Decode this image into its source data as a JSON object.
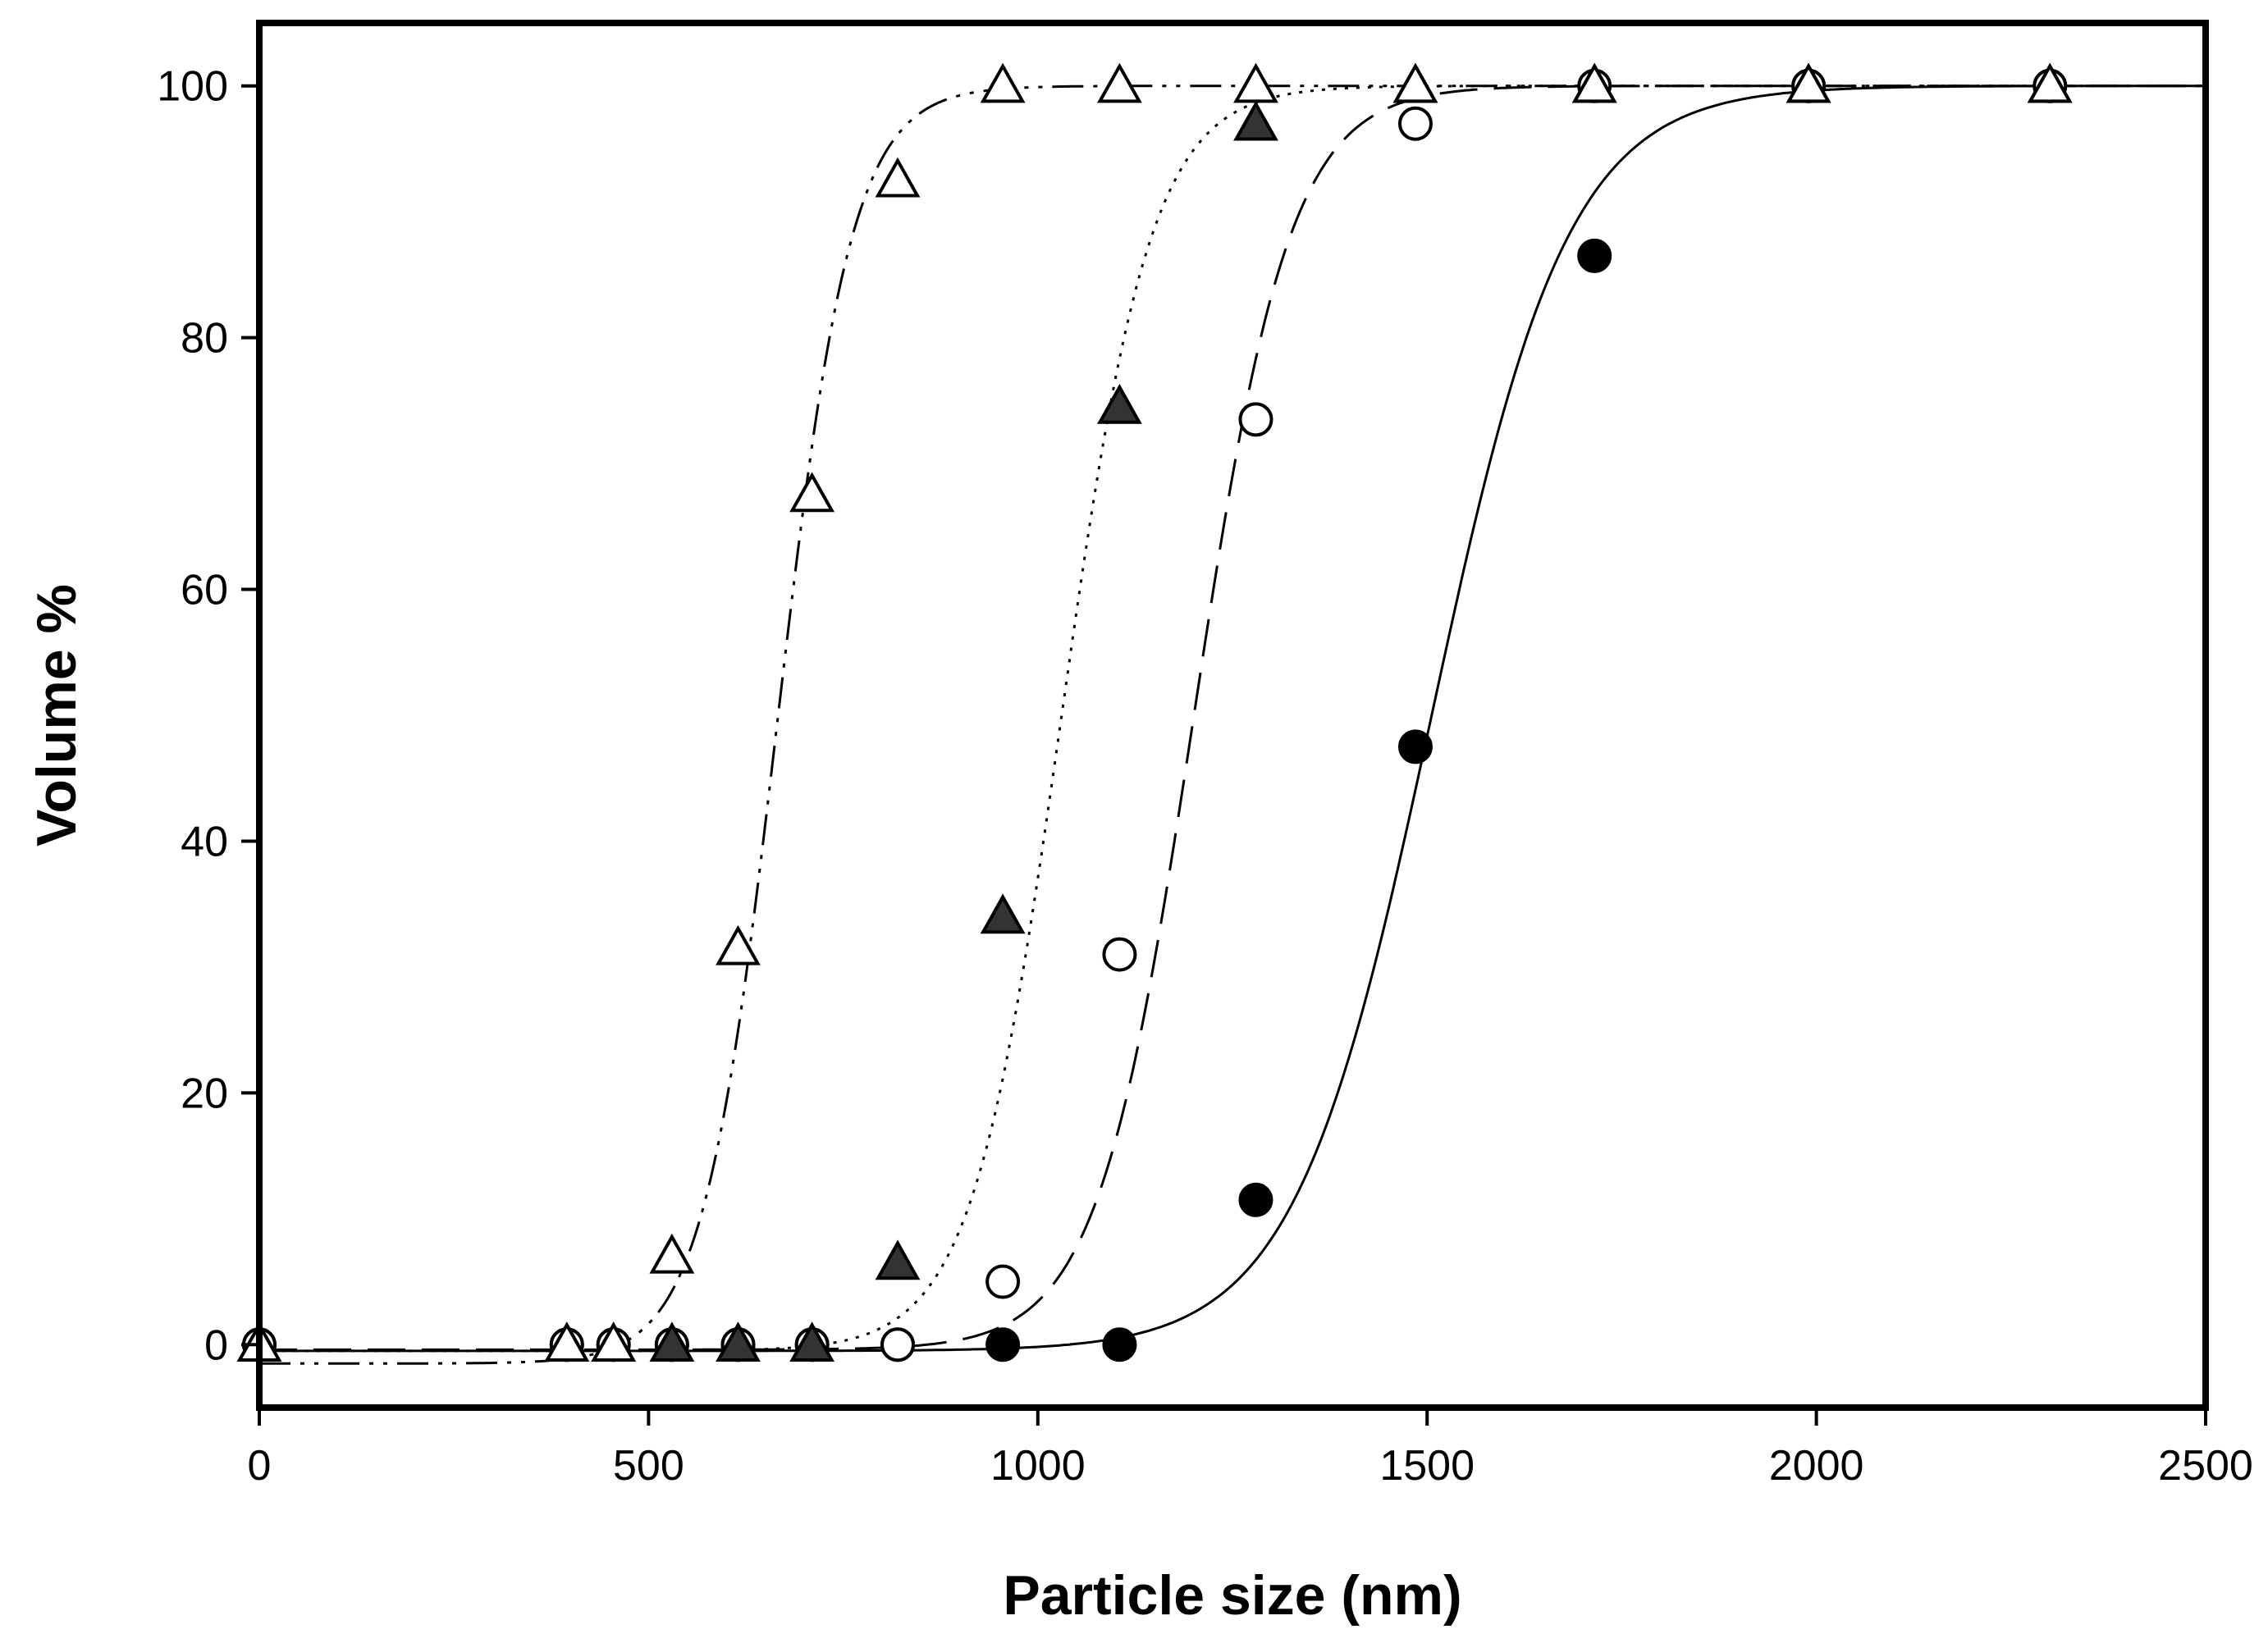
{
  "chart_data": {
    "type": "scatter",
    "title": "",
    "xlabel": "Particle size (nm)",
    "ylabel": "Volume %",
    "xlim": [
      0,
      2500
    ],
    "ylim": [
      -5,
      105
    ],
    "xticks": [
      0,
      500,
      1000,
      1500,
      2000,
      2500
    ],
    "yticks": [
      0,
      20,
      40,
      60,
      80,
      100
    ],
    "grid": false,
    "legend": "none",
    "series": [
      {
        "marker": "open-triangle",
        "line": "dash-dot-dot",
        "points": [
          [
            0,
            0
          ],
          [
            395,
            0
          ],
          [
            455,
            0
          ],
          [
            530,
            7
          ],
          [
            615,
            31.5
          ],
          [
            710,
            67.5
          ],
          [
            820,
            92.5
          ],
          [
            955,
            100
          ],
          [
            1105,
            100
          ],
          [
            1280,
            100
          ],
          [
            1485,
            100
          ],
          [
            1715,
            100
          ],
          [
            1990,
            100
          ],
          [
            2300,
            100
          ]
        ],
        "fit_midpoint": 665,
        "fit_width": 48,
        "fit_min": -1.5
      },
      {
        "marker": "filled-triangle",
        "line": "dotted",
        "points": [
          [
            0,
            0
          ],
          [
            395,
            0
          ],
          [
            455,
            0
          ],
          [
            530,
            0
          ],
          [
            615,
            0
          ],
          [
            710,
            0
          ],
          [
            820,
            6.5
          ],
          [
            955,
            34
          ],
          [
            1105,
            74.5
          ],
          [
            1280,
            97
          ],
          [
            1485,
            100
          ],
          [
            1715,
            100
          ],
          [
            1990,
            100
          ],
          [
            2300,
            100
          ]
        ],
        "fit_midpoint": 1030,
        "fit_width": 58,
        "fit_min": -0.5
      },
      {
        "marker": "open-circle",
        "line": "dashed",
        "points": [
          [
            0,
            0
          ],
          [
            395,
            0
          ],
          [
            455,
            0
          ],
          [
            530,
            0
          ],
          [
            615,
            0
          ],
          [
            710,
            0
          ],
          [
            820,
            0
          ],
          [
            955,
            5
          ],
          [
            1105,
            31
          ],
          [
            1280,
            73.5
          ],
          [
            1485,
            97
          ],
          [
            1715,
            100
          ],
          [
            1990,
            100
          ],
          [
            2300,
            100
          ]
        ],
        "fit_midpoint": 1200,
        "fit_width": 62,
        "fit_min": -0.4
      },
      {
        "marker": "filled-circle",
        "line": "solid",
        "points": [
          [
            0,
            0
          ],
          [
            395,
            0
          ],
          [
            455,
            0
          ],
          [
            530,
            0
          ],
          [
            615,
            0
          ],
          [
            710,
            0
          ],
          [
            820,
            0
          ],
          [
            955,
            0
          ],
          [
            1105,
            0
          ],
          [
            1280,
            11.5
          ],
          [
            1485,
            47.5
          ],
          [
            1715,
            86.5
          ],
          [
            1990,
            100
          ],
          [
            2300,
            100
          ]
        ],
        "fit_midpoint": 1505,
        "fit_width": 88,
        "fit_min": -0.5
      }
    ]
  }
}
